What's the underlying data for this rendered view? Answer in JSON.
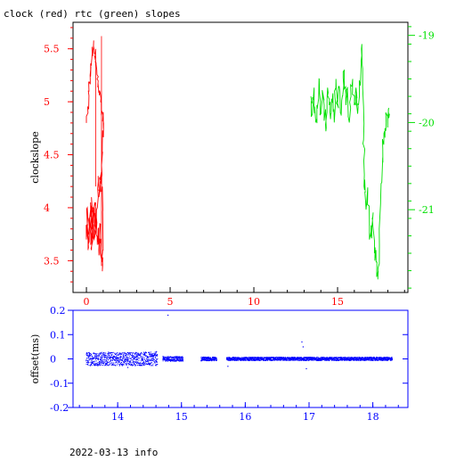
{
  "title": "clock (red) rtc (green) slopes",
  "footer": "2022-03-13 info",
  "colors": {
    "clock": "#ff0000",
    "rtc": "#00e000",
    "offset": "#0000ff",
    "axis": "#000000"
  },
  "chart_data": [
    {
      "type": "line",
      "ylabel": "clockslope",
      "xlim": [
        -0.8,
        19.2
      ],
      "ylim": [
        3.2,
        5.75
      ],
      "y2lim": [
        -21.95,
        -18.85
      ],
      "xticks": [
        0,
        5,
        10,
        15
      ],
      "yticks": [
        3.5,
        4,
        4.5,
        5,
        5.5
      ],
      "y2ticks": [
        -19,
        -20,
        -21
      ],
      "grid": false,
      "legend": "none",
      "series": [
        {
          "axis": "left",
          "x": [
            0,
            0.08,
            0.15,
            0.22,
            0.28,
            0.35,
            0.42,
            0.48,
            0.55,
            0.62,
            0.7,
            0.78,
            0.85,
            0.92,
            0.98,
            1.02,
            0.95,
            0.9,
            0.85,
            0.8,
            0.75,
            0.7,
            0.65,
            0.6,
            0.55,
            0.5,
            0.45,
            0.4,
            0.35,
            0.3,
            0.25,
            0.2,
            0.15,
            0.1,
            0.05,
            0,
            0.05,
            0.1,
            0.15,
            0.2,
            0.25,
            0.3,
            0.35,
            0.4,
            0.45,
            0.5,
            0.55,
            0.6,
            0.65,
            0.7,
            0.75,
            0.8,
            0.85,
            0.9,
            0.95,
            1.0,
            0.95,
            0.9,
            0.85,
            0.8
          ],
          "y": [
            4.8,
            4.95,
            5.1,
            5.25,
            5.35,
            5.45,
            5.52,
            5.45,
            5.38,
            5.3,
            5.2,
            5.1,
            5.0,
            4.9,
            4.85,
            4.8,
            4.6,
            4.4,
            4.3,
            4.25,
            4.1,
            4.3,
            4.0,
            3.8,
            3.9,
            4.05,
            3.7,
            3.95,
            3.8,
            4.1,
            3.65,
            3.9,
            3.75,
            3.6,
            3.85,
            3.7,
            4.0,
            3.65,
            3.9,
            3.8,
            4.05,
            3.6,
            3.85,
            4.0,
            3.7,
            3.95,
            3.75,
            3.9,
            3.65,
            3.8,
            3.55,
            3.85,
            3.7,
            3.5,
            3.4,
            3.6,
            4.2,
            4.25,
            4.3,
            4.2
          ]
        },
        {
          "axis": "right",
          "x": [
            13.4,
            13.5,
            13.6,
            13.7,
            13.8,
            13.9,
            14.0,
            14.1,
            14.2,
            14.3,
            14.4,
            14.5,
            14.6,
            14.7,
            14.8,
            14.9,
            15.0,
            15.1,
            15.2,
            15.3,
            15.4,
            15.5,
            15.6,
            15.7,
            15.8,
            15.9,
            16.0,
            16.1,
            16.2,
            16.3,
            16.4,
            16.45,
            16.5,
            16.55,
            16.6,
            16.65,
            16.7,
            16.8,
            16.9,
            17.0,
            17.1,
            17.2,
            17.3,
            17.4,
            17.5,
            17.6,
            17.7,
            17.8,
            17.9,
            18.0,
            18.1
          ],
          "y": [
            -19.7,
            -19.9,
            -19.6,
            -20.0,
            -19.8,
            -19.5,
            -19.9,
            -19.7,
            -19.8,
            -20.1,
            -19.6,
            -19.8,
            -19.9,
            -19.7,
            -20.0,
            -19.5,
            -19.8,
            -19.6,
            -19.9,
            -19.7,
            -19.4,
            -19.8,
            -19.6,
            -20.0,
            -19.7,
            -19.5,
            -19.8,
            -19.6,
            -19.9,
            -19.7,
            -19.3,
            -19.1,
            -19.6,
            -20.2,
            -20.6,
            -20.8,
            -21.0,
            -20.8,
            -21.2,
            -21.3,
            -21.1,
            -21.5,
            -21.6,
            -21.8,
            -21.4,
            -20.7,
            -20.3,
            -20.1,
            -20.0,
            -19.95,
            -19.9
          ]
        }
      ]
    },
    {
      "type": "scatter",
      "ylabel": "offset(ms)",
      "xlim": [
        13.3,
        18.55
      ],
      "ylim": [
        -0.2,
        0.2
      ],
      "xticks": [
        14,
        15,
        16,
        17,
        18
      ],
      "yticks": [
        0.2,
        0.1,
        0,
        -0.1,
        -0.2
      ],
      "grid": false,
      "legend": "none",
      "segments": [
        {
          "x0": 13.5,
          "x1": 14.62,
          "spread": 0.028
        },
        {
          "x0": 14.7,
          "x1": 15.02,
          "spread": 0.01
        },
        {
          "x0": 15.3,
          "x1": 15.55,
          "spread": 0.008
        },
        {
          "x0": 15.7,
          "x1": 18.3,
          "spread": 0.007
        }
      ],
      "outliers": [
        {
          "x": 14.78,
          "y": 0.18
        },
        {
          "x": 15.72,
          "y": -0.03
        },
        {
          "x": 16.88,
          "y": 0.07
        },
        {
          "x": 16.95,
          "y": -0.04
        },
        {
          "x": 16.9,
          "y": 0.05
        },
        {
          "x": 14.15,
          "y": -0.035
        },
        {
          "x": 14.6,
          "y": 0.03
        }
      ]
    }
  ]
}
